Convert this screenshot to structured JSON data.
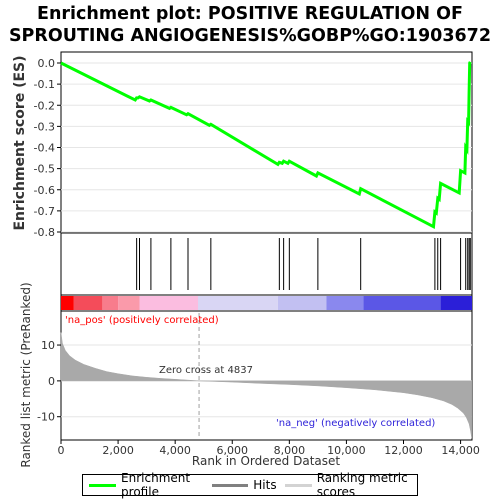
{
  "title_line1": "Enrichment plot: POSITIVE REGULATION OF",
  "title_line2": "SPROUTING ANGIOGENESIS%GOBP%GO:1903672",
  "chart_data": [
    {
      "type": "line",
      "ylabel": "Enrichment score (ES)",
      "ylim": [
        -0.8,
        0.0
      ],
      "yticks": [
        "0.0",
        "-0.1",
        "-0.2",
        "-0.3",
        "-0.4",
        "-0.5",
        "-0.6",
        "-0.7",
        "-0.8"
      ],
      "ytick_values": [
        0.0,
        -0.1,
        -0.2,
        -0.3,
        -0.4,
        -0.5,
        -0.6,
        -0.7,
        -0.8
      ],
      "xlim": [
        0,
        14400
      ],
      "series": [
        {
          "color": "#00ff00",
          "x": [
            0,
            2600,
            2650,
            2700,
            2750,
            3100,
            3150,
            3800,
            3850,
            4400,
            4450,
            5200,
            5250,
            7600,
            7650,
            7750,
            7800,
            7950,
            8000,
            8950,
            9000,
            10450,
            10500,
            13050,
            13100,
            13150,
            13200,
            13250,
            13300,
            13950,
            14000,
            14150,
            14180,
            14220,
            14250,
            14280,
            14300,
            14320,
            14340
          ],
          "y": [
            0.0,
            -0.175,
            -0.165,
            -0.165,
            -0.16,
            -0.18,
            -0.175,
            -0.215,
            -0.21,
            -0.245,
            -0.24,
            -0.295,
            -0.29,
            -0.48,
            -0.47,
            -0.475,
            -0.465,
            -0.475,
            -0.465,
            -0.535,
            -0.52,
            -0.62,
            -0.595,
            -0.775,
            -0.705,
            -0.71,
            -0.64,
            -0.645,
            -0.57,
            -0.615,
            -0.51,
            -0.52,
            -0.4,
            -0.41,
            -0.275,
            -0.28,
            -0.14,
            0.0,
            0.005
          ]
        }
      ]
    },
    {
      "type": "scatter",
      "hits": [
        2650,
        2750,
        3150,
        3850,
        4450,
        5250,
        7650,
        7800,
        8000,
        9000,
        10500,
        13100,
        13200,
        13300,
        14000,
        14180,
        14250,
        14300,
        14340
      ]
    },
    {
      "type": "heatmap",
      "colorbar": [
        {
          "x0": 0,
          "x1": 450,
          "color": "#ff0000"
        },
        {
          "x0": 450,
          "x1": 1450,
          "color": "#f44c5a"
        },
        {
          "x0": 1450,
          "x1": 2000,
          "color": "#f87c8c"
        },
        {
          "x0": 2000,
          "x1": 2750,
          "color": "#fa9aaa"
        },
        {
          "x0": 2750,
          "x1": 4800,
          "color": "#fbbde0"
        },
        {
          "x0": 4800,
          "x1": 7600,
          "color": "#d9d6f4"
        },
        {
          "x0": 7600,
          "x1": 9300,
          "color": "#c2c0f2"
        },
        {
          "x0": 9300,
          "x1": 10600,
          "color": "#8a88ee"
        },
        {
          "x0": 10600,
          "x1": 13300,
          "color": "#5b57e6"
        },
        {
          "x0": 13300,
          "x1": 14400,
          "color": "#2b1fd8"
        }
      ]
    },
    {
      "type": "area",
      "xlabel": "Rank in Ordered Dataset",
      "ylabel": "Ranked list metric (PreRanked)",
      "ylim": [
        -16.5,
        19.5
      ],
      "yticks": [
        "10",
        "0",
        "-10"
      ],
      "ytick_values": [
        10,
        0,
        -10
      ],
      "xticks": [
        "0",
        "2,000",
        "4,000",
        "6,000",
        "8,000",
        "10,000",
        "12,000",
        "14,000"
      ],
      "xtick_values": [
        0,
        2000,
        4000,
        6000,
        8000,
        10000,
        12000,
        14000
      ],
      "x": [
        0,
        50,
        150,
        300,
        500,
        800,
        1200,
        1600,
        2000,
        2500,
        3000,
        3500,
        4000,
        4500,
        4837,
        6000,
        7000,
        8000,
        9000,
        10000,
        11000,
        12000,
        12500,
        13000,
        13400,
        13700,
        13900,
        14100,
        14200,
        14300,
        14350,
        14390
      ],
      "values": [
        13.5,
        10.5,
        8.5,
        7.0,
        5.8,
        4.6,
        3.5,
        2.6,
        2.0,
        1.4,
        1.0,
        0.7,
        0.45,
        0.2,
        0.0,
        -0.35,
        -0.7,
        -1.0,
        -1.4,
        -1.9,
        -2.5,
        -3.3,
        -3.9,
        -4.7,
        -5.6,
        -6.6,
        -7.6,
        -9.0,
        -10.2,
        -12.0,
        -14.0,
        -16.0
      ],
      "annotations": [
        "'na_pos' (positively correlated)",
        "Zero cross at 4837",
        "'na_neg' (negatively correlated)"
      ],
      "zero_cross": 4837
    }
  ],
  "legend": {
    "enrichment_label": "Enrichment profile",
    "hits_label": "Hits",
    "ranking_label": "Ranking metric scores",
    "enrichment_color": "#00ff00",
    "hits_color": "#808080",
    "ranking_color": "#d3d3d3"
  }
}
